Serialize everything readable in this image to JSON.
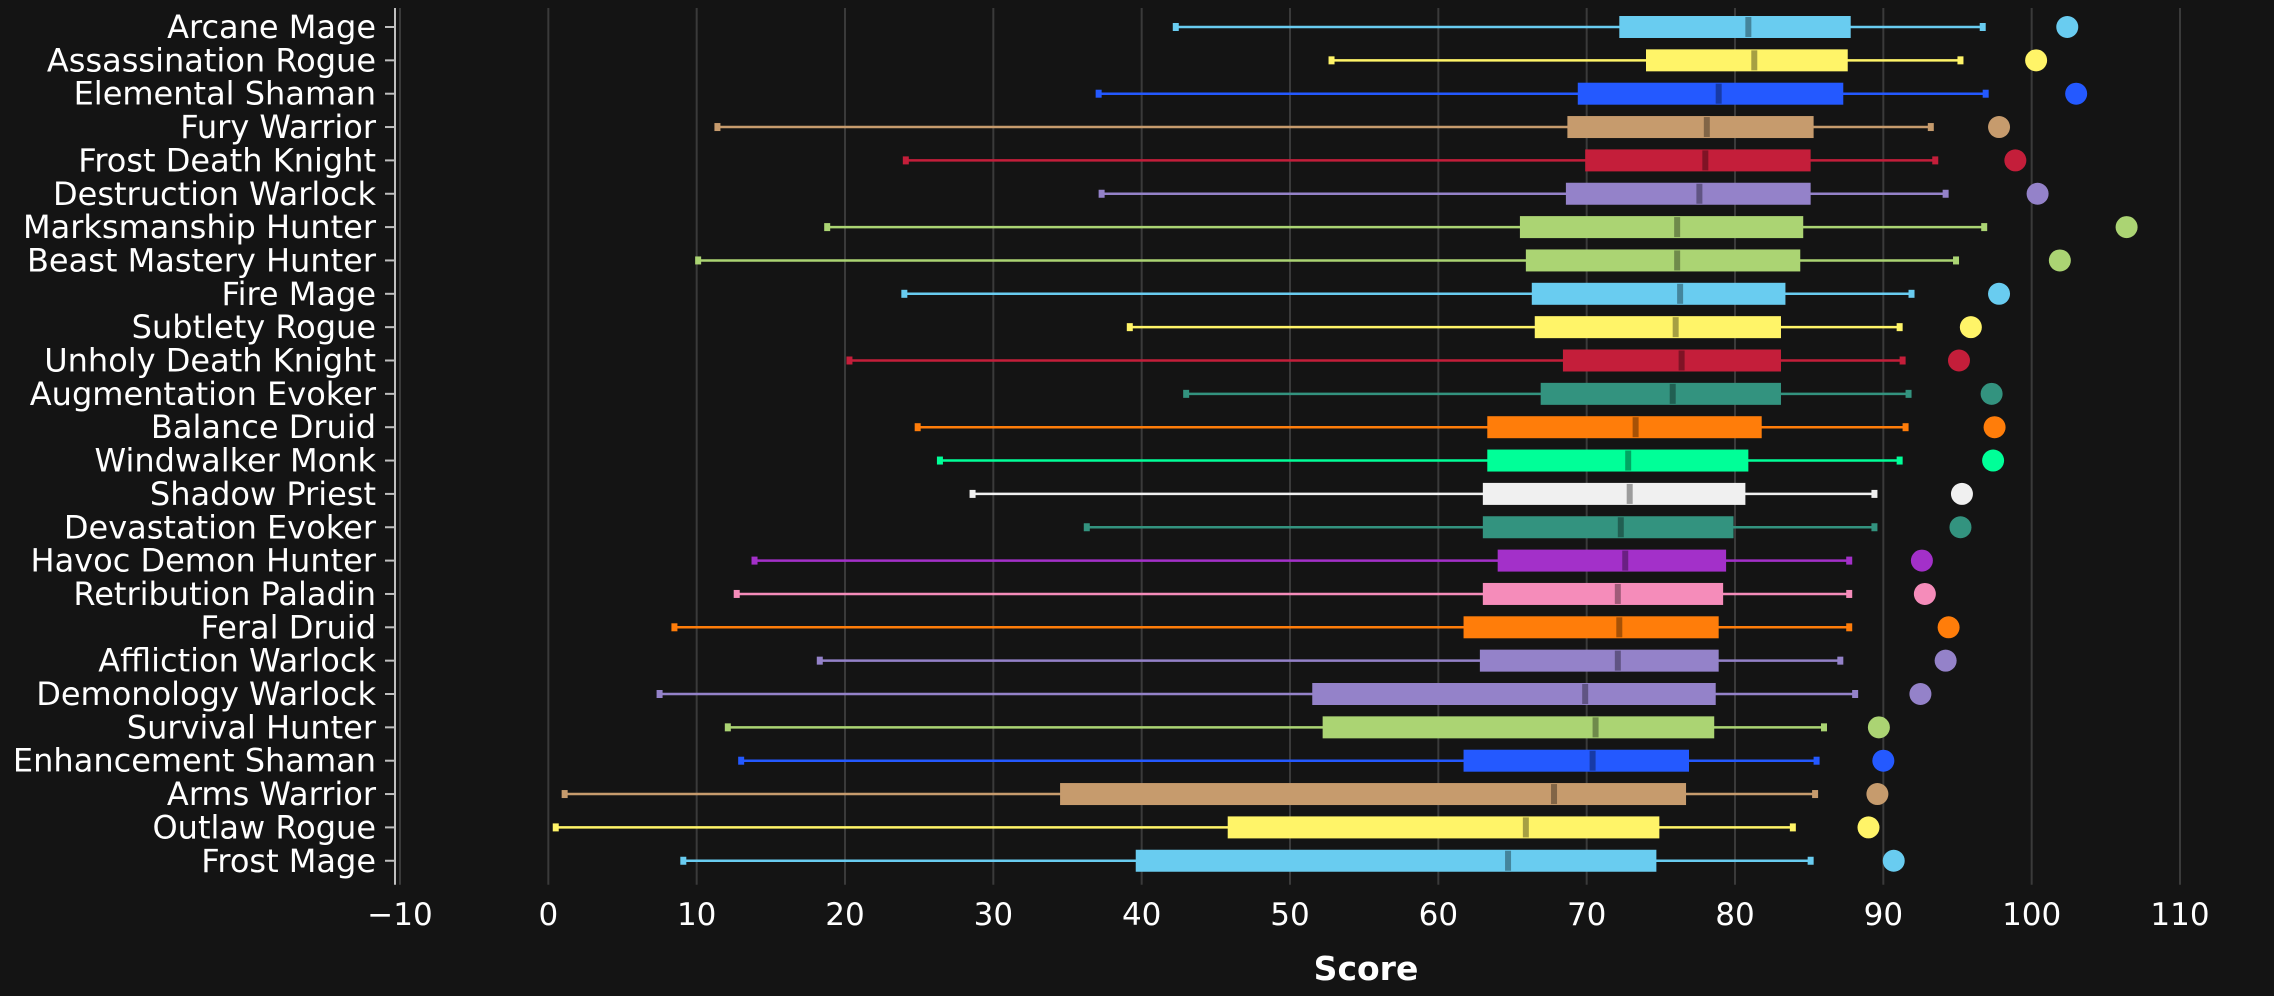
{
  "chart_data": {
    "type": "boxplot",
    "orientation": "horizontal",
    "title": "",
    "xlabel": "Score",
    "ylabel": "",
    "xlim": [
      -10,
      110
    ],
    "xticks": [
      -10,
      0,
      10,
      20,
      30,
      40,
      50,
      60,
      70,
      80,
      90,
      100,
      110
    ],
    "grid": true,
    "legend": "none",
    "background_color": "#141414",
    "series": [
      {
        "category": "Arcane Mage",
        "color": "#69ccf0",
        "min": 42.3,
        "q1": 72.2,
        "median": 80.9,
        "q3": 87.8,
        "max": 96.7,
        "top": 102.4
      },
      {
        "category": "Assassination Rogue",
        "color": "#fff468",
        "min": 52.8,
        "q1": 74.0,
        "median": 81.3,
        "q3": 87.6,
        "max": 95.2,
        "top": 100.3
      },
      {
        "category": "Elemental Shaman",
        "color": "#2459ff",
        "min": 37.1,
        "q1": 69.4,
        "median": 78.9,
        "q3": 87.3,
        "max": 96.9,
        "top": 103.0
      },
      {
        "category": "Fury Warrior",
        "color": "#c69b6d",
        "min": 11.4,
        "q1": 68.7,
        "median": 78.1,
        "q3": 85.3,
        "max": 93.2,
        "top": 97.8
      },
      {
        "category": "Frost Death Knight",
        "color": "#c41e3a",
        "min": 24.1,
        "q1": 69.9,
        "median": 78.0,
        "q3": 85.1,
        "max": 93.5,
        "top": 98.9
      },
      {
        "category": "Destruction Warlock",
        "color": "#9482c9",
        "min": 37.3,
        "q1": 68.6,
        "median": 77.6,
        "q3": 85.1,
        "max": 94.2,
        "top": 100.4
      },
      {
        "category": "Marksmanship Hunter",
        "color": "#abd473",
        "min": 18.8,
        "q1": 65.5,
        "median": 76.1,
        "q3": 84.6,
        "max": 96.8,
        "top": 106.4
      },
      {
        "category": "Beast Mastery Hunter",
        "color": "#abd473",
        "min": 10.1,
        "q1": 65.9,
        "median": 76.1,
        "q3": 84.4,
        "max": 94.9,
        "top": 101.9
      },
      {
        "category": "Fire Mage",
        "color": "#69ccf0",
        "min": 24.0,
        "q1": 66.3,
        "median": 76.3,
        "q3": 83.4,
        "max": 91.9,
        "top": 97.8
      },
      {
        "category": "Subtlety Rogue",
        "color": "#fff468",
        "min": 39.2,
        "q1": 66.5,
        "median": 76.0,
        "q3": 83.1,
        "max": 91.1,
        "top": 95.9
      },
      {
        "category": "Unholy Death Knight",
        "color": "#c41e3a",
        "min": 20.3,
        "q1": 68.4,
        "median": 76.4,
        "q3": 83.1,
        "max": 91.3,
        "top": 95.1
      },
      {
        "category": "Augmentation Evoker",
        "color": "#33937f",
        "min": 43.0,
        "q1": 66.9,
        "median": 75.8,
        "q3": 83.1,
        "max": 91.7,
        "top": 97.3
      },
      {
        "category": "Balance Druid",
        "color": "#ff7d0a",
        "min": 24.9,
        "q1": 63.3,
        "median": 73.3,
        "q3": 81.8,
        "max": 91.5,
        "top": 97.5
      },
      {
        "category": "Windwalker Monk",
        "color": "#00ff98",
        "min": 26.4,
        "q1": 63.3,
        "median": 72.8,
        "q3": 80.9,
        "max": 91.1,
        "top": 97.4
      },
      {
        "category": "Shadow Priest",
        "color": "#f0f0f0",
        "min": 28.6,
        "q1": 63.0,
        "median": 72.9,
        "q3": 80.7,
        "max": 89.4,
        "top": 95.3
      },
      {
        "category": "Devastation Evoker",
        "color": "#33937f",
        "min": 36.3,
        "q1": 63.0,
        "median": 72.3,
        "q3": 79.9,
        "max": 89.4,
        "top": 95.2
      },
      {
        "category": "Havoc Demon Hunter",
        "color": "#a330c9",
        "min": 13.9,
        "q1": 64.0,
        "median": 72.6,
        "q3": 79.4,
        "max": 87.7,
        "top": 92.6
      },
      {
        "category": "Retribution Paladin",
        "color": "#f58cba",
        "min": 12.7,
        "q1": 63.0,
        "median": 72.1,
        "q3": 79.2,
        "max": 87.7,
        "top": 92.8
      },
      {
        "category": "Feral Druid",
        "color": "#ff7d0a",
        "min": 8.5,
        "q1": 61.7,
        "median": 72.2,
        "q3": 78.9,
        "max": 87.7,
        "top": 94.4
      },
      {
        "category": "Affliction Warlock",
        "color": "#9482c9",
        "min": 18.3,
        "q1": 62.8,
        "median": 72.1,
        "q3": 78.9,
        "max": 87.1,
        "top": 94.2
      },
      {
        "category": "Demonology Warlock",
        "color": "#9482c9",
        "min": 7.5,
        "q1": 51.5,
        "median": 69.9,
        "q3": 78.7,
        "max": 88.1,
        "top": 92.5
      },
      {
        "category": "Survival Hunter",
        "color": "#abd473",
        "min": 12.1,
        "q1": 52.2,
        "median": 70.6,
        "q3": 78.6,
        "max": 86.0,
        "top": 89.7
      },
      {
        "category": "Enhancement Shaman",
        "color": "#2459ff",
        "min": 13.0,
        "q1": 61.7,
        "median": 70.4,
        "q3": 76.9,
        "max": 85.5,
        "top": 90.0
      },
      {
        "category": "Arms Warrior",
        "color": "#c69b6d",
        "min": 1.1,
        "q1": 34.5,
        "median": 67.8,
        "q3": 76.7,
        "max": 85.4,
        "top": 89.6
      },
      {
        "category": "Outlaw Rogue",
        "color": "#fff468",
        "min": 0.5,
        "q1": 45.8,
        "median": 65.9,
        "q3": 74.9,
        "max": 83.9,
        "top": 89.0
      },
      {
        "category": "Frost Mage",
        "color": "#69ccf0",
        "min": 9.1,
        "q1": 39.6,
        "median": 64.7,
        "q3": 74.7,
        "max": 85.1,
        "top": 90.7
      }
    ]
  }
}
